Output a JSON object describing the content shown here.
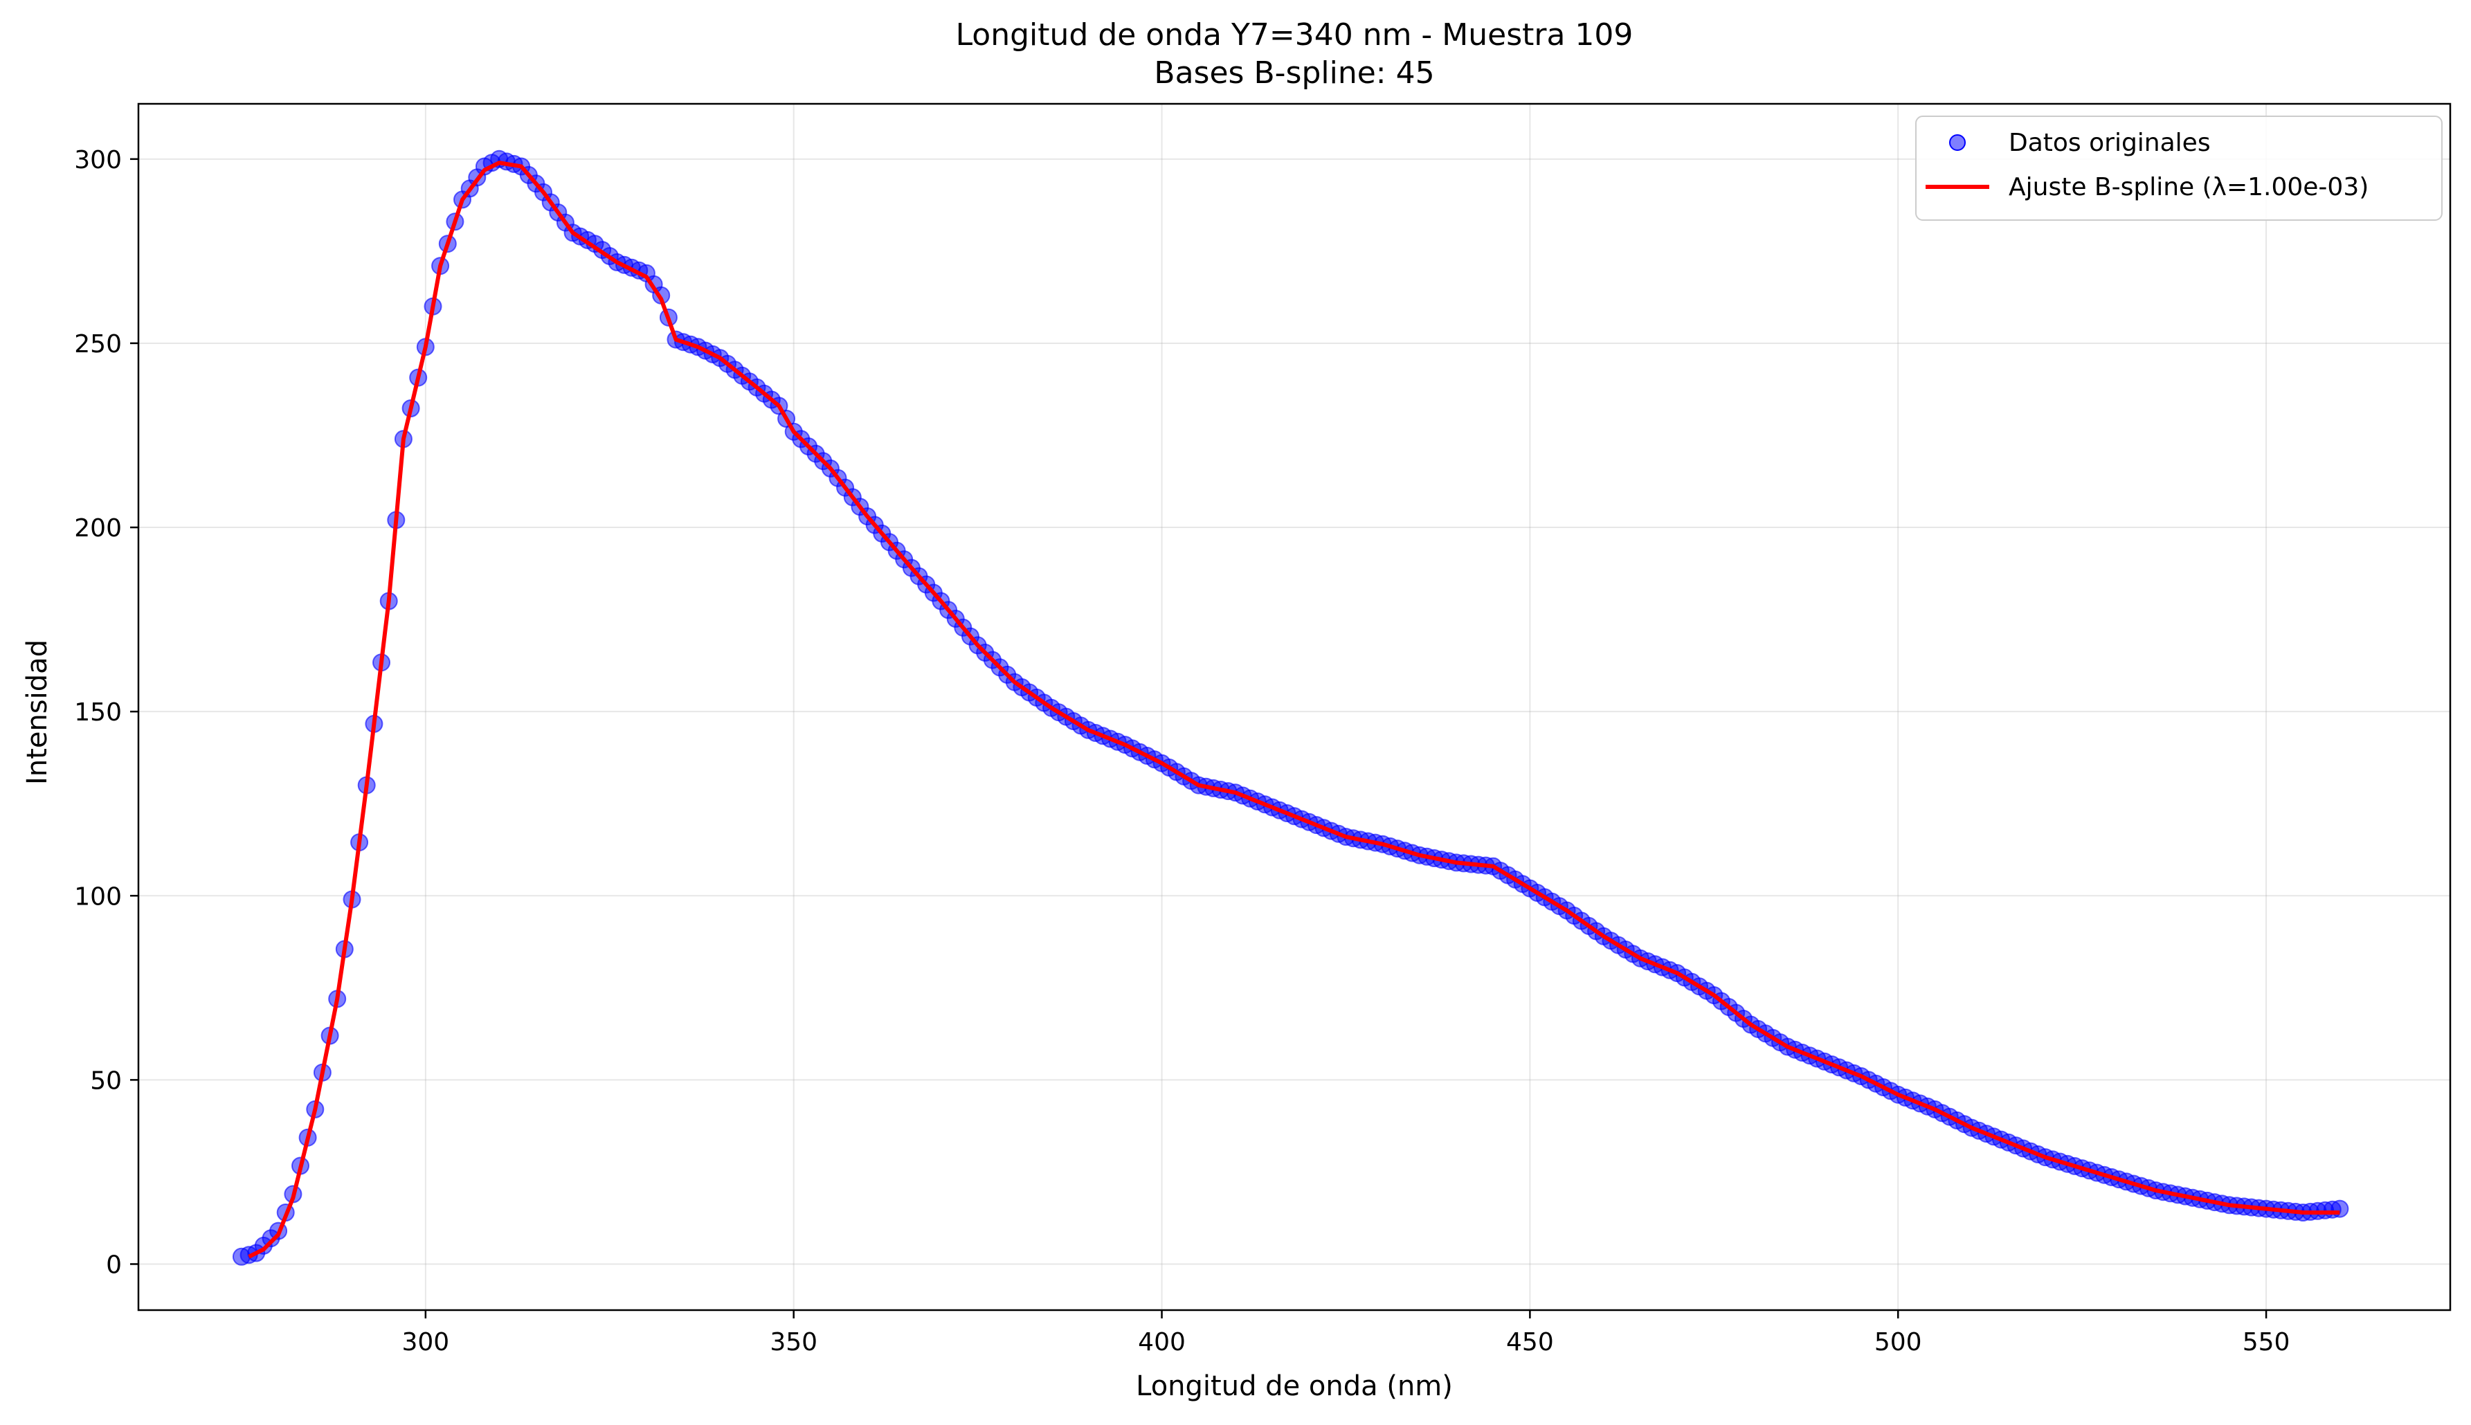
{
  "chart_data": {
    "type": "scatter",
    "title": "Longitud de onda Y7=340 nm - Muestra 109",
    "subtitle": "Bases B-spline: 45",
    "xlabel": "Longitud de onda (nm)",
    "ylabel": "Intensidad",
    "xlim": [
      261,
      575
    ],
    "ylim": [
      -12.5,
      315
    ],
    "xticks": [
      300,
      350,
      400,
      450,
      500,
      550
    ],
    "yticks": [
      0,
      50,
      100,
      150,
      200,
      250,
      300
    ],
    "grid": true,
    "legend_position": "top-right",
    "colors": {
      "scatter": "#0000ff",
      "fit": "#ff0000"
    },
    "x_range": [
      275,
      560
    ],
    "x_step": 1,
    "series": [
      {
        "name": "Datos originales",
        "kind": "scatter",
        "x": [
          275,
          277,
          280,
          282,
          285,
          288,
          290,
          292,
          295,
          297,
          300,
          302,
          305,
          308,
          310,
          313,
          316,
          320,
          323,
          326,
          330,
          332,
          334,
          337,
          340,
          345,
          348,
          350,
          355,
          360,
          363,
          366,
          370,
          375,
          380,
          385,
          390,
          395,
          400,
          405,
          410,
          415,
          420,
          425,
          430,
          435,
          440,
          445,
          450,
          455,
          460,
          465,
          470,
          475,
          480,
          485,
          490,
          495,
          500,
          505,
          510,
          515,
          520,
          525,
          530,
          535,
          540,
          545,
          550,
          555,
          560
        ],
        "y": [
          2,
          3,
          9,
          19,
          42,
          72,
          99,
          130,
          180,
          224,
          249,
          271,
          289,
          298,
          300,
          298,
          291,
          280,
          277,
          272,
          269,
          263,
          251,
          249,
          246,
          238,
          233,
          226,
          216,
          203,
          196,
          189,
          180,
          168,
          158,
          151,
          145,
          141,
          136,
          130,
          128,
          124,
          120,
          116,
          114,
          111,
          109,
          108,
          102,
          96,
          89,
          83,
          79,
          73,
          65,
          59,
          55,
          51,
          46,
          42,
          37,
          33,
          29,
          26,
          23,
          20,
          18,
          16,
          15,
          14,
          15
        ]
      },
      {
        "name": "Ajuste B-spline (λ=1.00e-03)",
        "kind": "line",
        "x": [
          276,
          278,
          280,
          282,
          285,
          288,
          290,
          292,
          295,
          297,
          300,
          302,
          305,
          308,
          310,
          313,
          316,
          320,
          323,
          326,
          330,
          332,
          334,
          337,
          340,
          345,
          348,
          350,
          355,
          360,
          363,
          366,
          370,
          375,
          380,
          385,
          390,
          395,
          400,
          405,
          410,
          415,
          420,
          425,
          430,
          435,
          440,
          445,
          450,
          455,
          460,
          465,
          470,
          475,
          480,
          485,
          490,
          495,
          500,
          505,
          510,
          515,
          520,
          525,
          530,
          535,
          540,
          545,
          550,
          555,
          560
        ],
        "y": [
          2,
          4,
          8,
          18,
          42,
          72,
          99,
          130,
          180,
          224,
          249,
          271,
          289,
          297,
          299,
          298,
          291,
          280,
          276,
          272,
          268,
          262,
          251,
          249,
          246,
          238,
          233,
          226,
          216,
          203,
          196,
          189,
          180,
          168,
          158,
          151,
          145,
          141,
          136,
          130,
          128,
          124,
          120,
          116,
          114,
          111,
          109,
          108,
          102,
          96,
          89,
          83,
          79,
          73,
          65,
          59,
          55,
          51,
          46,
          42,
          37,
          33,
          29,
          26,
          23,
          20,
          18,
          16,
          15,
          14,
          14
        ]
      }
    ]
  }
}
